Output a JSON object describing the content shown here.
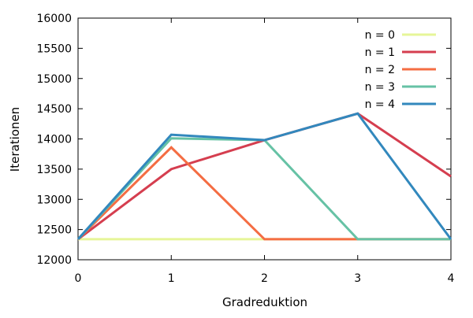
{
  "chart_data": {
    "type": "line",
    "title": "",
    "xlabel": "Gradreduktion",
    "ylabel": "Iterationen",
    "x": [
      0,
      1,
      2,
      3,
      4
    ],
    "xlim": [
      0,
      4
    ],
    "ylim": [
      12000,
      16000
    ],
    "x_ticks": [
      "0",
      "1",
      "2",
      "3",
      "4"
    ],
    "y_ticks": [
      "12000",
      "12500",
      "13000",
      "13500",
      "14000",
      "14500",
      "15000",
      "15500",
      "16000"
    ],
    "grid": false,
    "legend_position": "top-right",
    "series": [
      {
        "name": "n = 0",
        "color": "#e6f598",
        "values": [
          12340,
          12340,
          12340,
          12340,
          12340
        ]
      },
      {
        "name": "n = 1",
        "color": "#d53e4f",
        "values": [
          12340,
          13500,
          13980,
          14420,
          13380
        ]
      },
      {
        "name": "n = 2",
        "color": "#f46d43",
        "values": [
          12340,
          13860,
          12340,
          12340,
          12340
        ]
      },
      {
        "name": "n = 3",
        "color": "#66c2a5",
        "values": [
          12340,
          14010,
          13980,
          12340,
          12340
        ]
      },
      {
        "name": "n = 4",
        "color": "#3288bd",
        "values": [
          12340,
          14070,
          13980,
          14420,
          12340
        ]
      }
    ]
  }
}
